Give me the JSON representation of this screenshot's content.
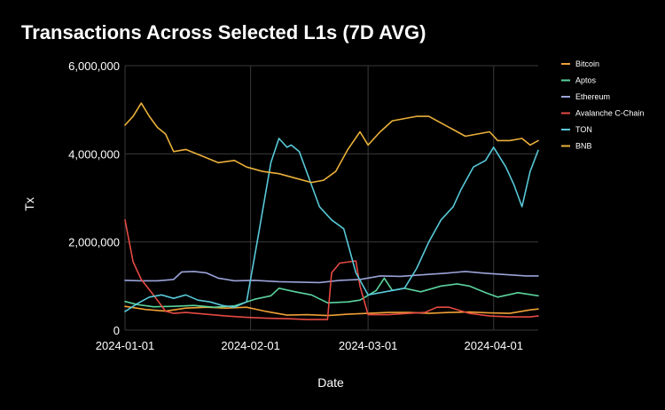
{
  "chart_data": {
    "type": "line",
    "title": "Transactions Across Selected L1s (7D AVG)",
    "xlabel": "Date",
    "ylabel": "Tx",
    "ylim": [
      0,
      6000000
    ],
    "yticks": [
      0,
      2000000,
      4000000,
      6000000
    ],
    "ytick_labels": [
      "0",
      "2,000,000",
      "4,000,000",
      "6,000,000"
    ],
    "xlim": [
      "2024-01-01",
      "2024-04-12"
    ],
    "xticks": [
      "2024-01-01",
      "2024-02-01",
      "2024-03-01",
      "2024-04-01"
    ],
    "xtick_labels": [
      "2024-01-01",
      "2024-02-01",
      "2024-03-01",
      "2024-04-01"
    ],
    "grid": true,
    "legend_position": "right",
    "series": [
      {
        "name": "Bitcoin",
        "color": "#f0a035",
        "x": [
          "2024-01-01",
          "2024-01-06",
          "2024-01-11",
          "2024-01-16",
          "2024-01-21",
          "2024-01-26",
          "2024-01-31",
          "2024-02-05",
          "2024-02-10",
          "2024-02-15",
          "2024-02-20",
          "2024-02-25",
          "2024-03-01",
          "2024-03-06",
          "2024-03-11",
          "2024-03-16",
          "2024-03-21",
          "2024-03-26",
          "2024-03-31",
          "2024-04-05",
          "2024-04-10",
          "2024-04-12"
        ],
        "y": [
          540000,
          470000,
          430000,
          500000,
          520000,
          500000,
          520000,
          420000,
          340000,
          350000,
          330000,
          360000,
          380000,
          400000,
          400000,
          380000,
          400000,
          410000,
          390000,
          380000,
          460000,
          480000
        ]
      },
      {
        "name": "Aptos",
        "color": "#5bd39d",
        "x": [
          "2024-01-01",
          "2024-01-04",
          "2024-01-08",
          "2024-01-13",
          "2024-01-18",
          "2024-01-23",
          "2024-01-28",
          "2024-02-02",
          "2024-02-06",
          "2024-02-08",
          "2024-02-12",
          "2024-02-16",
          "2024-02-20",
          "2024-02-25",
          "2024-02-28",
          "2024-03-03",
          "2024-03-05",
          "2024-03-07",
          "2024-03-10",
          "2024-03-14",
          "2024-03-19",
          "2024-03-23",
          "2024-03-26",
          "2024-03-30",
          "2024-04-02",
          "2024-04-07",
          "2024-04-12"
        ],
        "y": [
          650000,
          580000,
          530000,
          540000,
          560000,
          520000,
          550000,
          700000,
          780000,
          950000,
          870000,
          800000,
          620000,
          640000,
          680000,
          900000,
          1180000,
          900000,
          950000,
          870000,
          1000000,
          1050000,
          1000000,
          850000,
          750000,
          850000,
          780000
        ]
      },
      {
        "name": "Ethereum",
        "color": "#9aa3d9",
        "x": [
          "2024-01-01",
          "2024-01-05",
          "2024-01-09",
          "2024-01-13",
          "2024-01-15",
          "2024-01-18",
          "2024-01-21",
          "2024-01-24",
          "2024-01-28",
          "2024-02-02",
          "2024-02-08",
          "2024-02-13",
          "2024-02-18",
          "2024-02-23",
          "2024-02-28",
          "2024-03-04",
          "2024-03-09",
          "2024-03-15",
          "2024-03-20",
          "2024-03-25",
          "2024-03-30",
          "2024-04-04",
          "2024-04-09",
          "2024-04-12"
        ],
        "y": [
          1130000,
          1120000,
          1120000,
          1150000,
          1320000,
          1330000,
          1300000,
          1180000,
          1120000,
          1130000,
          1100000,
          1090000,
          1080000,
          1130000,
          1150000,
          1230000,
          1220000,
          1260000,
          1290000,
          1330000,
          1290000,
          1260000,
          1230000,
          1230000
        ]
      },
      {
        "name": "Avalanche C-Chain",
        "color": "#e54a43",
        "x": [
          "2024-01-01",
          "2024-01-03",
          "2024-01-05",
          "2024-01-08",
          "2024-01-11",
          "2024-01-13",
          "2024-01-16",
          "2024-01-21",
          "2024-01-26",
          "2024-01-31",
          "2024-02-05",
          "2024-02-10",
          "2024-02-15",
          "2024-02-20",
          "2024-02-21",
          "2024-02-23",
          "2024-02-27",
          "2024-02-28",
          "2024-03-01",
          "2024-03-06",
          "2024-03-11",
          "2024-03-15",
          "2024-03-18",
          "2024-03-21",
          "2024-03-26",
          "2024-03-31",
          "2024-04-05",
          "2024-04-10",
          "2024-04-12"
        ],
        "y": [
          2500000,
          1550000,
          1150000,
          800000,
          430000,
          380000,
          400000,
          360000,
          320000,
          290000,
          270000,
          260000,
          240000,
          240000,
          1300000,
          1520000,
          1570000,
          1000000,
          350000,
          350000,
          380000,
          400000,
          520000,
          520000,
          380000,
          320000,
          300000,
          300000,
          320000
        ]
      },
      {
        "name": "TON",
        "color": "#58c8d8",
        "x": [
          "2024-01-01",
          "2024-01-04",
          "2024-01-07",
          "2024-01-10",
          "2024-01-13",
          "2024-01-16",
          "2024-01-19",
          "2024-01-22",
          "2024-01-25",
          "2024-01-28",
          "2024-01-31",
          "2024-02-03",
          "2024-02-06",
          "2024-02-08",
          "2024-02-10",
          "2024-02-11",
          "2024-02-13",
          "2024-02-16",
          "2024-02-18",
          "2024-02-21",
          "2024-02-24",
          "2024-02-27",
          "2024-03-01",
          "2024-03-04",
          "2024-03-07",
          "2024-03-10",
          "2024-03-13",
          "2024-03-16",
          "2024-03-19",
          "2024-03-22",
          "2024-03-24",
          "2024-03-27",
          "2024-03-30",
          "2024-04-01",
          "2024-04-04",
          "2024-04-06",
          "2024-04-08",
          "2024-04-10",
          "2024-04-12"
        ],
        "y": [
          420000,
          600000,
          750000,
          800000,
          720000,
          800000,
          680000,
          640000,
          560000,
          520000,
          640000,
          2200000,
          3800000,
          4350000,
          4150000,
          4200000,
          4050000,
          3300000,
          2800000,
          2500000,
          2300000,
          1300000,
          800000,
          850000,
          900000,
          950000,
          1400000,
          2000000,
          2500000,
          2800000,
          3200000,
          3700000,
          3850000,
          4150000,
          3700000,
          3300000,
          2800000,
          3600000,
          4080000
        ]
      },
      {
        "name": "BNB",
        "color": "#eab03a",
        "x": [
          "2024-01-01",
          "2024-01-03",
          "2024-01-05",
          "2024-01-07",
          "2024-01-09",
          "2024-01-11",
          "2024-01-13",
          "2024-01-16",
          "2024-01-20",
          "2024-01-24",
          "2024-01-28",
          "2024-01-31",
          "2024-02-04",
          "2024-02-08",
          "2024-02-12",
          "2024-02-16",
          "2024-02-19",
          "2024-02-22",
          "2024-02-25",
          "2024-02-28",
          "2024-03-01",
          "2024-03-04",
          "2024-03-07",
          "2024-03-10",
          "2024-03-13",
          "2024-03-16",
          "2024-03-19",
          "2024-03-22",
          "2024-03-25",
          "2024-03-28",
          "2024-03-31",
          "2024-04-02",
          "2024-04-05",
          "2024-04-08",
          "2024-04-10",
          "2024-04-12"
        ],
        "y": [
          4650000,
          4850000,
          5150000,
          4850000,
          4600000,
          4450000,
          4050000,
          4100000,
          3950000,
          3800000,
          3850000,
          3700000,
          3600000,
          3550000,
          3450000,
          3350000,
          3400000,
          3600000,
          4100000,
          4500000,
          4200000,
          4500000,
          4750000,
          4800000,
          4850000,
          4850000,
          4700000,
          4550000,
          4400000,
          4450000,
          4500000,
          4300000,
          4300000,
          4350000,
          4200000,
          4300000
        ]
      }
    ]
  }
}
